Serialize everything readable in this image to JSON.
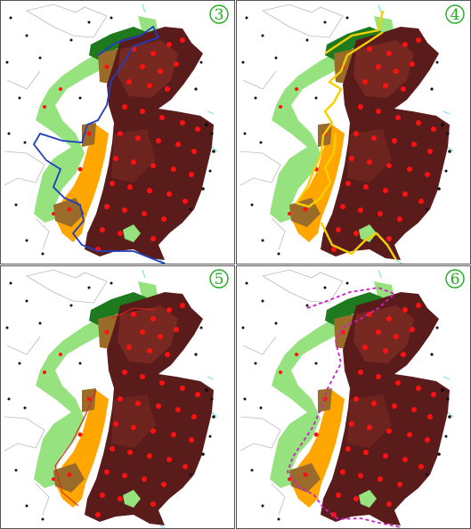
{
  "figure": {
    "panels": [
      {
        "id": "panel-3",
        "label": "3",
        "outline": {
          "color": "#1f3fbf",
          "style": "solid"
        }
      },
      {
        "id": "panel-4",
        "label": "4",
        "outline": {
          "color": "#f5d000",
          "style": "solid"
        }
      },
      {
        "id": "panel-5",
        "label": "5",
        "outline": {
          "color": "#e02020",
          "style": "thin"
        }
      },
      {
        "id": "panel-6",
        "label": "6",
        "outline": {
          "color": "#d020c8",
          "style": "dashed"
        }
      }
    ],
    "colors": {
      "land_dark": "#5a1b1b",
      "land_mid": "#7a2a22",
      "buffer_light_green": "#95e27e",
      "buffer_dark_green": "#1e7a1e",
      "buffer_orange": "#ffa600",
      "buffer_olive": "#9b6b2a",
      "sites_red": "#ff1111",
      "points_black": "#111111",
      "coast_cyan": "#7fe3f0",
      "admin_lines": "#bbbbbb",
      "badge_green": "#22aa22"
    }
  }
}
